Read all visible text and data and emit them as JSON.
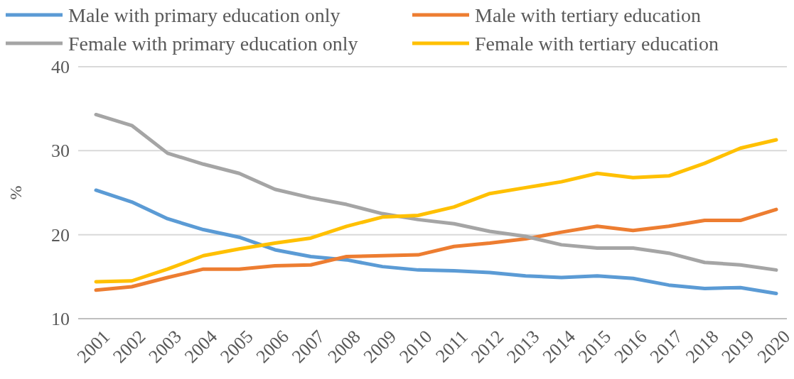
{
  "chart_data": {
    "type": "line",
    "ylabel": "%",
    "categories": [
      "2001",
      "2002",
      "2003",
      "2004",
      "2005",
      "2006",
      "2007",
      "2008",
      "2009",
      "2010",
      "2011",
      "2012",
      "2013",
      "2014",
      "2015",
      "2016",
      "2017",
      "2018",
      "2019",
      "2020"
    ],
    "series": [
      {
        "name": "Male with primary education only",
        "color": "#5b9bd5",
        "values": [
          25.3,
          23.9,
          21.9,
          20.6,
          19.7,
          18.2,
          17.4,
          17.0,
          16.2,
          15.8,
          15.7,
          15.5,
          15.1,
          14.9,
          15.1,
          14.8,
          14.0,
          13.6,
          13.7,
          13.0
        ]
      },
      {
        "name": "Male with tertiary education",
        "color": "#ed7d31",
        "values": [
          13.4,
          13.8,
          14.9,
          15.9,
          15.9,
          16.3,
          16.4,
          17.4,
          17.5,
          17.6,
          18.6,
          19.0,
          19.5,
          20.3,
          21.0,
          20.5,
          21.0,
          21.7,
          21.7,
          23.0
        ]
      },
      {
        "name": "Female with primary education only",
        "color": "#a5a5a5",
        "values": [
          34.3,
          33.0,
          29.7,
          28.4,
          27.3,
          25.4,
          24.4,
          23.6,
          22.5,
          21.8,
          21.3,
          20.4,
          19.8,
          18.8,
          18.4,
          18.4,
          17.8,
          16.7,
          16.4,
          15.8
        ]
      },
      {
        "name": "Female with tertiary education",
        "color": "#ffc000",
        "values": [
          14.4,
          14.5,
          15.9,
          17.5,
          18.3,
          19.0,
          19.6,
          21.0,
          22.1,
          22.3,
          23.3,
          24.9,
          25.6,
          26.3,
          27.3,
          26.8,
          27.0,
          28.5,
          30.3,
          31.3
        ]
      }
    ],
    "ylim": [
      10,
      40
    ],
    "yticks": [
      10,
      20,
      30,
      40
    ],
    "grid": "y",
    "legend": "top",
    "marker": "none",
    "line_style": "solid"
  }
}
